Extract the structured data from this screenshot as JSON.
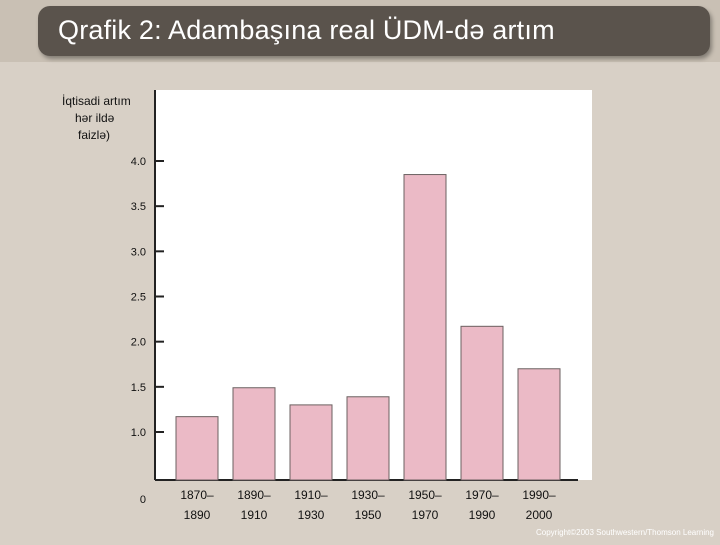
{
  "slide": {
    "title": "Qrafik  2: Adambaşına real ÜDM-də artım",
    "copyright": "Copyright©2003  Southwestern/Thomson Learning"
  },
  "colors": {
    "title_bg": "#5a534c",
    "bar_fill": "#ebbac6",
    "bar_stroke": "#6b6060",
    "plot_bg": "#ffffff"
  },
  "chart_data": {
    "type": "bar",
    "ylabel_lines": [
      "İqtisadi artım",
      "hər ildə",
      "faizlə)"
    ],
    "categories": [
      [
        "1870–",
        "1890"
      ],
      [
        "1890–",
        "1910"
      ],
      [
        "1910–",
        "1930"
      ],
      [
        "1930–",
        "1950"
      ],
      [
        "1950–",
        "1970"
      ],
      [
        "1970–",
        "1990"
      ],
      [
        "1990–",
        "2000"
      ]
    ],
    "values": [
      1.17,
      1.49,
      1.3,
      1.39,
      3.85,
      2.17,
      1.7
    ],
    "yticks": [
      "4.0",
      "3.5",
      "3.0",
      "2.5",
      "2.0",
      "1.5",
      "1.0",
      "0"
    ],
    "ylim": [
      0,
      4.3
    ],
    "axis_break": true,
    "grid": false,
    "legend": "none"
  }
}
